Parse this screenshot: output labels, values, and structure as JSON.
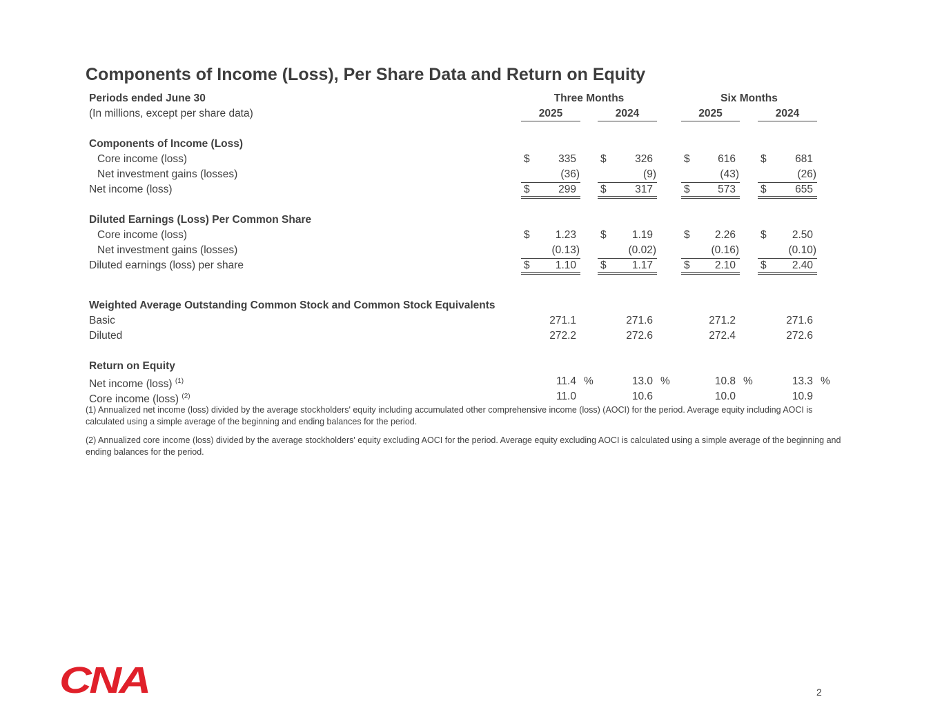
{
  "title": "Components of Income (Loss), Per Share Data and Return on Equity",
  "table": {
    "header": {
      "period": "Periods ended June 30",
      "units": "(In millions, except per share data)",
      "groups": [
        "Three Months",
        "Six Months"
      ],
      "years": [
        "2025",
        "2024",
        "2025",
        "2024"
      ]
    },
    "sections": [
      {
        "heading": "Components of Income (Loss)",
        "rows": [
          {
            "label": "Core income (loss)",
            "indent": true,
            "currency": "$",
            "cells": [
              "335",
              "326",
              "616",
              "681"
            ]
          },
          {
            "label": "Net investment gains (losses)",
            "indent": true,
            "cells": [
              "(36)",
              "(9)",
              "(43)",
              "(26)"
            ]
          },
          {
            "label": "Net income (loss)",
            "currency": "$",
            "total": true,
            "cells": [
              "299",
              "317",
              "573",
              "655"
            ]
          }
        ]
      },
      {
        "heading": "Diluted Earnings (Loss) Per Common Share",
        "rows": [
          {
            "label": "Core income (loss)",
            "indent": true,
            "currency": "$",
            "cells": [
              "1.23",
              "1.19",
              "2.26",
              "2.50"
            ]
          },
          {
            "label": "Net investment gains (losses)",
            "indent": true,
            "cells": [
              "(0.13)",
              "(0.02)",
              "(0.16)",
              "(0.10)"
            ]
          },
          {
            "label": "Diluted earnings (loss) per share",
            "currency": "$",
            "total": true,
            "cells": [
              "1.10",
              "1.17",
              "2.10",
              "2.40"
            ]
          }
        ]
      },
      {
        "heading": "Weighted Average Outstanding Common Stock and Common Stock Equivalents",
        "rows": [
          {
            "label": "Basic",
            "cells": [
              "271.1",
              "271.6",
              "271.2",
              "271.6"
            ]
          },
          {
            "label": "Diluted",
            "cells": [
              "272.2",
              "272.6",
              "272.4",
              "272.6"
            ]
          }
        ]
      },
      {
        "heading": "Return on Equity",
        "rows": [
          {
            "label": "Net income (loss)",
            "note": "(1)",
            "unit": "%",
            "cells": [
              "11.4",
              "13.0",
              "10.8",
              "13.3"
            ]
          },
          {
            "label": "Core income (loss)",
            "note": "(2)",
            "cells": [
              "11.0",
              "10.6",
              "10.0",
              "10.9"
            ]
          }
        ]
      }
    ]
  },
  "footnotes": [
    "(1)  Annualized net income (loss) divided by the average stockholders' equity including accumulated other comprehensive income (loss) (AOCI) for the period.  Average equity including AOCI is calculated using a simple average of the beginning and ending balances for the period.",
    "(2)  Annualized core income (loss) divided by the average stockholders' equity excluding AOCI for the period.  Average equity excluding AOCI is calculated using a simple average of the beginning and ending balances for the period."
  ],
  "logo": "CNA",
  "page_number": "2"
}
